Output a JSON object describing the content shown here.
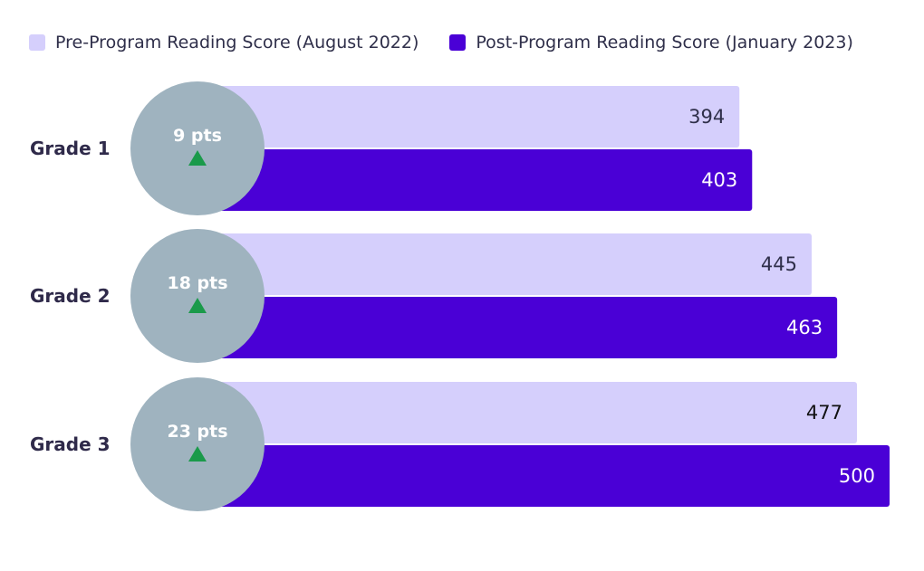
{
  "legend": [
    {
      "label": "Pre-Program Reading Score (August 2022)",
      "color": "#d5cffc"
    },
    {
      "label": "Post-Program Reading Score (January 2023)",
      "color": "#4a00d6"
    }
  ],
  "colors": {
    "pre_bar": "#d5cffc",
    "post_bar": "#4a00d6",
    "pre_text": [
      "#2f2f4a",
      "#2f2f4a",
      "#111111"
    ],
    "post_text": "#ffffff",
    "circle": "#9fb3bf",
    "arrow": "#1a9a4a"
  },
  "chart_data": {
    "type": "bar",
    "orientation": "horizontal",
    "categories": [
      "Grade 1",
      "Grade 2",
      "Grade 3"
    ],
    "series": [
      {
        "name": "Pre-Program Reading Score (August 2022)",
        "values": [
          394,
          445,
          477
        ]
      },
      {
        "name": "Post-Program Reading Score (January 2023)",
        "values": [
          403,
          463,
          500
        ]
      }
    ],
    "annotations": [
      "9 pts",
      "18 pts",
      "23 pts"
    ],
    "data_labels": [
      [
        "394",
        "403"
      ],
      [
        "445",
        "463"
      ],
      [
        "477",
        "500"
      ]
    ],
    "grid": false,
    "legend_position": "top-left"
  }
}
